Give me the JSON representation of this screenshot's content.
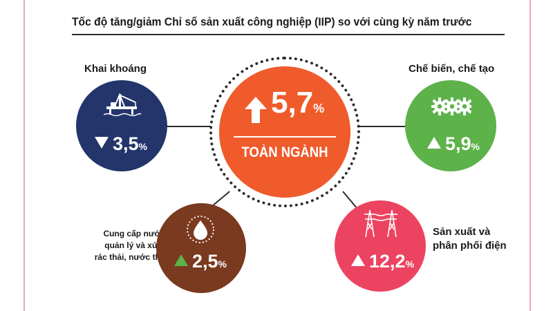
{
  "title": "Tốc độ tăng/giảm Chỉ số sản xuất công nghiệp (IIP) so với cùng kỳ năm trước",
  "center": {
    "direction": "up",
    "value": "5,7",
    "unit": "%",
    "label": "TOÀN NGÀNH",
    "color": "#ef5b2b"
  },
  "sectors": [
    {
      "label": "Khai khoáng",
      "direction": "down",
      "value": "3,5",
      "unit": "%",
      "color": "#23356b",
      "icon": "oil-rig-icon"
    },
    {
      "label": "Chế biến, chế tạo",
      "direction": "up",
      "value": "5,9",
      "unit": "%",
      "color": "#5db24a",
      "icon": "gears-icon"
    },
    {
      "label_lines": [
        "Cung cấp nước,",
        "quản lý và xử lý",
        "rác thải, nước thải"
      ],
      "direction": "up",
      "value": "2,5",
      "unit": "%",
      "color": "#7a3a1f",
      "icon": "water-drop-icon"
    },
    {
      "label_lines": [
        "Sản xuất và",
        "phân phối điện"
      ],
      "direction": "up",
      "value": "12,2",
      "unit": "%",
      "color": "#ec4361",
      "icon": "power-tower-icon"
    }
  ]
}
